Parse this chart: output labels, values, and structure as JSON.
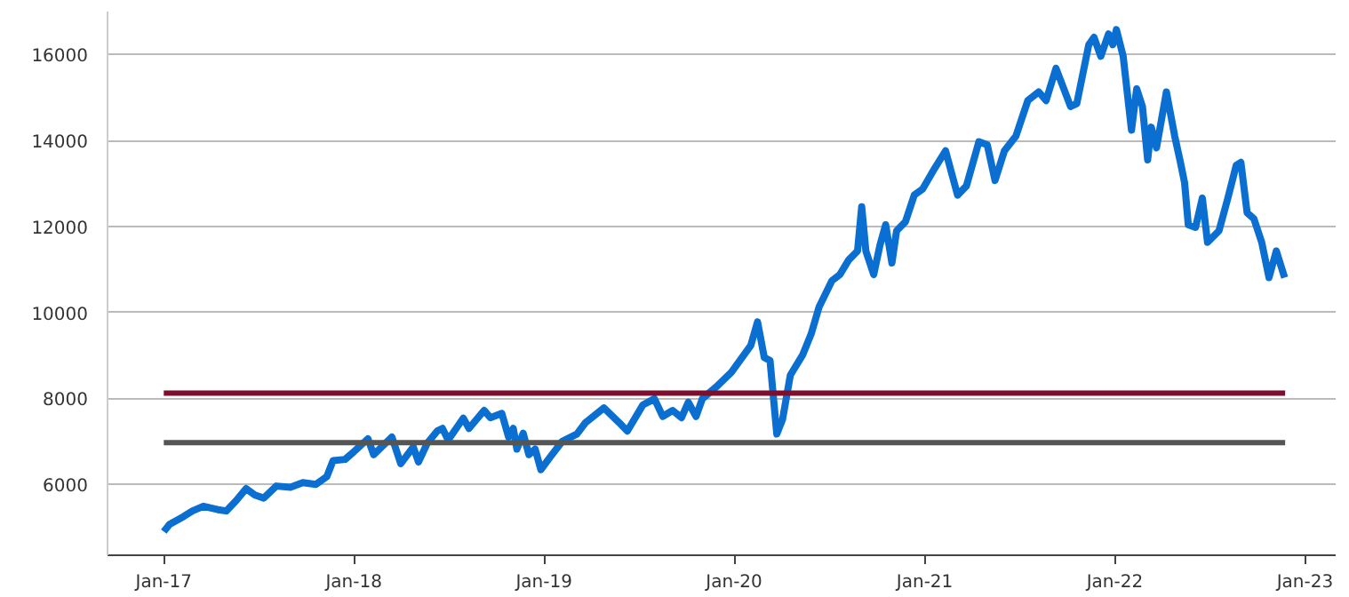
{
  "chart_data": {
    "type": "line",
    "xlim": [
      "2016-09-15",
      "2023-03-01"
    ],
    "xticks": [
      {
        "value": "2017-01-01",
        "label": "Jan-17"
      },
      {
        "value": "2018-01-01",
        "label": "Jan-18"
      },
      {
        "value": "2019-01-01",
        "label": "Jan-19"
      },
      {
        "value": "2020-01-01",
        "label": "Jan-20"
      },
      {
        "value": "2021-01-01",
        "label": "Jan-21"
      },
      {
        "value": "2022-01-01",
        "label": "Jan-22"
      },
      {
        "value": "2023-01-01",
        "label": "Jan-23"
      }
    ],
    "yticks": [
      6000,
      8000,
      10000,
      12000,
      14000,
      16000
    ],
    "ylim": [
      4350,
      17000
    ],
    "grid": "y",
    "marker": "none",
    "line_style": "solid",
    "series": [
      {
        "color": "#0a6fd0",
        "x": [
          "2017-01-01",
          "2017-01-12",
          "2017-02-08",
          "2017-02-25",
          "2017-03-18",
          "2017-04-15",
          "2017-05-01",
          "2017-05-20",
          "2017-06-08",
          "2017-06-25",
          "2017-07-12",
          "2017-08-05",
          "2017-09-01",
          "2017-09-25",
          "2017-10-20",
          "2017-11-10",
          "2017-11-22",
          "2017-12-15",
          "2018-01-01",
          "2018-01-28",
          "2018-02-08",
          "2018-03-15",
          "2018-04-01",
          "2018-04-25",
          "2018-05-05",
          "2018-05-22",
          "2018-06-10",
          "2018-06-20",
          "2018-07-01",
          "2018-07-30",
          "2018-08-10",
          "2018-09-08",
          "2018-09-20",
          "2018-10-12",
          "2018-10-25",
          "2018-11-03",
          "2018-11-10",
          "2018-11-22",
          "2018-12-03",
          "2018-12-15",
          "2018-12-26",
          "2019-01-12",
          "2019-02-05",
          "2019-03-05",
          "2019-03-22",
          "2019-04-26",
          "2019-05-25",
          "2019-06-10",
          "2019-07-10",
          "2019-08-01",
          "2019-08-17",
          "2019-09-05",
          "2019-09-22",
          "2019-10-05",
          "2019-10-20",
          "2019-11-01",
          "2019-11-28",
          "2019-12-27",
          "2020-02-02",
          "2020-02-15",
          "2020-02-28",
          "2020-03-10",
          "2020-03-23",
          "2020-04-03",
          "2020-04-18",
          "2020-05-12",
          "2020-05-28",
          "2020-06-12",
          "2020-07-07",
          "2020-07-22",
          "2020-08-08",
          "2020-08-25",
          "2020-09-02",
          "2020-09-10",
          "2020-09-25",
          "2020-10-07",
          "2020-10-18",
          "2020-10-30",
          "2020-11-08",
          "2020-11-25",
          "2020-12-12",
          "2020-12-28",
          "2021-01-20",
          "2021-02-10",
          "2021-03-05",
          "2021-03-22",
          "2021-04-15",
          "2021-05-01",
          "2021-05-16",
          "2021-06-03",
          "2021-06-25",
          "2021-07-18",
          "2021-08-08",
          "2021-08-22",
          "2021-09-10",
          "2021-10-08",
          "2021-10-20",
          "2021-11-12",
          "2021-11-22",
          "2021-12-05",
          "2021-12-20",
          "2021-12-28",
          "2022-01-04",
          "2022-01-17",
          "2022-02-02",
          "2022-02-12",
          "2022-02-23",
          "2022-03-05",
          "2022-03-12",
          "2022-03-22",
          "2022-04-10",
          "2022-04-26",
          "2022-05-07",
          "2022-05-15",
          "2022-05-22",
          "2022-06-05",
          "2022-06-18",
          "2022-06-28",
          "2022-07-20",
          "2022-08-06",
          "2022-08-22",
          "2022-08-31",
          "2022-09-12",
          "2022-09-25",
          "2022-10-10",
          "2022-10-24",
          "2022-11-07",
          "2022-11-23"
        ],
        "values": [
          4900,
          5070,
          5250,
          5380,
          5490,
          5410,
          5380,
          5620,
          5900,
          5750,
          5680,
          5960,
          5930,
          6040,
          6000,
          6180,
          6550,
          6580,
          6760,
          7060,
          6690,
          7100,
          6480,
          6870,
          6520,
          6960,
          7240,
          7300,
          7030,
          7540,
          7300,
          7720,
          7550,
          7650,
          7100,
          7300,
          6820,
          7190,
          6690,
          6820,
          6340,
          6620,
          7000,
          7170,
          7440,
          7780,
          7440,
          7240,
          7850,
          7990,
          7580,
          7720,
          7550,
          7910,
          7580,
          7990,
          8270,
          8610,
          9230,
          9780,
          8950,
          8880,
          7170,
          7510,
          8540,
          9020,
          9500,
          10120,
          10740,
          10880,
          11220,
          11430,
          12460,
          11430,
          10880,
          11560,
          12040,
          11150,
          11900,
          12110,
          12730,
          12870,
          13350,
          13760,
          12730,
          12940,
          13970,
          13900,
          13070,
          13760,
          14100,
          14930,
          15130,
          14930,
          15680,
          14790,
          14860,
          16230,
          16400,
          15960,
          16480,
          16230,
          16580,
          15960,
          14240,
          15200,
          14790,
          13550,
          14310,
          13830,
          15130,
          14100,
          13490,
          13010,
          12040,
          11980,
          12660,
          11630,
          11900,
          12660,
          13420,
          13490,
          12320,
          12180,
          11630,
          10810,
          11430,
          10810
        ]
      },
      {
        "color": "#7a0f2e",
        "x": [
          "2017-01-01",
          "2022-11-24"
        ],
        "values": [
          8120,
          8120
        ]
      },
      {
        "color": "#555555",
        "x": [
          "2017-01-01",
          "2022-11-24"
        ],
        "values": [
          6970,
          6970
        ]
      }
    ]
  }
}
